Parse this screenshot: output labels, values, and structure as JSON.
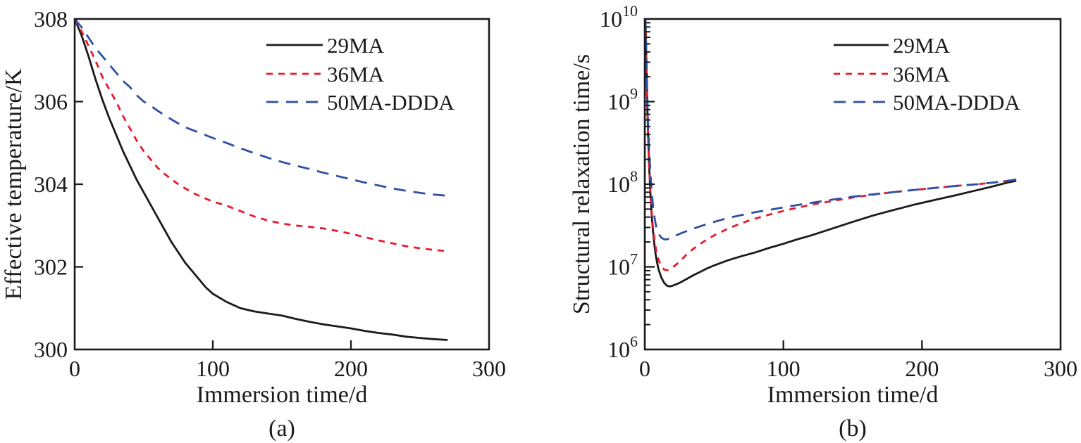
{
  "figure_name": "immersion-time-dual-panel-figure",
  "axis_color": "#1a1a1a",
  "chart_data": [
    {
      "type": "line",
      "caption": "(a)",
      "xlabel": "Immersion time/d",
      "ylabel": "Effective temperature/K",
      "yscale": "linear",
      "xlim": [
        0,
        300
      ],
      "ylim": [
        300,
        308
      ],
      "x_ticks": [
        0,
        100,
        200,
        300
      ],
      "y_ticks": [
        300,
        302,
        304,
        306,
        308
      ],
      "grid": false,
      "legend_position": "inside-upper-right",
      "series": [
        {
          "name": "29MA",
          "color": "#1a1a1a",
          "dash": "solid",
          "points": [
            [
              0,
              308
            ],
            [
              5,
              307.6
            ],
            [
              10,
              307.1
            ],
            [
              15,
              306.55
            ],
            [
              20,
              306.05
            ],
            [
              25,
              305.6
            ],
            [
              30,
              305.2
            ],
            [
              35,
              304.8
            ],
            [
              40,
              304.45
            ],
            [
              45,
              304.1
            ],
            [
              50,
              303.8
            ],
            [
              55,
              303.5
            ],
            [
              60,
              303.2
            ],
            [
              65,
              302.9
            ],
            [
              70,
              302.6
            ],
            [
              75,
              302.35
            ],
            [
              80,
              302.1
            ],
            [
              85,
              301.9
            ],
            [
              90,
              301.7
            ],
            [
              95,
              301.5
            ],
            [
              100,
              301.35
            ],
            [
              110,
              301.15
            ],
            [
              120,
              301.0
            ],
            [
              130,
              300.92
            ],
            [
              140,
              300.87
            ],
            [
              150,
              300.82
            ],
            [
              160,
              300.74
            ],
            [
              170,
              300.67
            ],
            [
              180,
              300.61
            ],
            [
              190,
              300.56
            ],
            [
              200,
              300.51
            ],
            [
              210,
              300.45
            ],
            [
              220,
              300.4
            ],
            [
              230,
              300.36
            ],
            [
              240,
              300.31
            ],
            [
              250,
              300.28
            ],
            [
              260,
              300.25
            ],
            [
              270,
              300.23
            ]
          ]
        },
        {
          "name": "36MA",
          "color": "#e8192d",
          "dash": "short-dash",
          "points": [
            [
              0,
              308
            ],
            [
              5,
              307.7
            ],
            [
              10,
              307.35
            ],
            [
              15,
              307.0
            ],
            [
              20,
              306.6
            ],
            [
              25,
              306.3
            ],
            [
              30,
              306.0
            ],
            [
              35,
              305.65
            ],
            [
              40,
              305.35
            ],
            [
              45,
              305.05
            ],
            [
              50,
              304.8
            ],
            [
              55,
              304.6
            ],
            [
              60,
              304.4
            ],
            [
              65,
              304.25
            ],
            [
              70,
              304.12
            ],
            [
              75,
              304.0
            ],
            [
              80,
              303.9
            ],
            [
              85,
              303.8
            ],
            [
              90,
              303.72
            ],
            [
              95,
              303.65
            ],
            [
              100,
              303.58
            ],
            [
              110,
              303.48
            ],
            [
              120,
              303.35
            ],
            [
              130,
              303.22
            ],
            [
              140,
              303.12
            ],
            [
              150,
              303.05
            ],
            [
              160,
              303.0
            ],
            [
              170,
              302.97
            ],
            [
              180,
              302.93
            ],
            [
              190,
              302.87
            ],
            [
              200,
              302.8
            ],
            [
              210,
              302.72
            ],
            [
              220,
              302.64
            ],
            [
              230,
              302.57
            ],
            [
              240,
              302.5
            ],
            [
              250,
              302.45
            ],
            [
              260,
              302.41
            ],
            [
              270,
              302.38
            ]
          ]
        },
        {
          "name": "50MA-DDDA",
          "color": "#2e4fa5",
          "dash": "long-dash",
          "points": [
            [
              0,
              308
            ],
            [
              5,
              307.8
            ],
            [
              10,
              307.55
            ],
            [
              15,
              307.3
            ],
            [
              20,
              307.1
            ],
            [
              25,
              306.9
            ],
            [
              30,
              306.7
            ],
            [
              35,
              306.5
            ],
            [
              40,
              306.35
            ],
            [
              45,
              306.15
            ],
            [
              50,
              306.0
            ],
            [
              55,
              305.9
            ],
            [
              60,
              305.78
            ],
            [
              65,
              305.67
            ],
            [
              70,
              305.57
            ],
            [
              75,
              305.47
            ],
            [
              80,
              305.38
            ],
            [
              90,
              305.25
            ],
            [
              100,
              305.12
            ],
            [
              110,
              305.0
            ],
            [
              120,
              304.87
            ],
            [
              130,
              304.75
            ],
            [
              140,
              304.64
            ],
            [
              150,
              304.54
            ],
            [
              160,
              304.45
            ],
            [
              170,
              304.37
            ],
            [
              180,
              304.28
            ],
            [
              190,
              304.2
            ],
            [
              200,
              304.12
            ],
            [
              210,
              304.04
            ],
            [
              220,
              303.97
            ],
            [
              230,
              303.9
            ],
            [
              240,
              303.84
            ],
            [
              250,
              303.79
            ],
            [
              260,
              303.75
            ],
            [
              270,
              303.72
            ]
          ]
        }
      ]
    },
    {
      "type": "line",
      "caption": "(b)",
      "xlabel": "Immersion time/d",
      "ylabel": "Structural relaxation time/s",
      "yscale": "log",
      "xlim": [
        0,
        300
      ],
      "ylim": [
        1000000.0,
        10000000000.0
      ],
      "x_ticks": [
        0,
        100,
        200,
        300
      ],
      "y_ticks": [
        {
          "base": "10",
          "exp": "6",
          "value": 1000000.0
        },
        {
          "base": "10",
          "exp": "7",
          "value": 10000000.0
        },
        {
          "base": "10",
          "exp": "8",
          "value": 100000000.0
        },
        {
          "base": "10",
          "exp": "9",
          "value": 1000000000.0
        },
        {
          "base": "10",
          "exp": "10",
          "value": 10000000000.0
        }
      ],
      "grid": false,
      "legend_position": "inside-upper-right",
      "series": [
        {
          "name": "29MA",
          "color": "#1a1a1a",
          "dash": "solid",
          "points": [
            [
              0.5,
              9500000000.0
            ],
            [
              1,
              4000000000.0
            ],
            [
              1.5,
              1600000000.0
            ],
            [
              2,
              700000000.0
            ],
            [
              2.5,
              350000000.0
            ],
            [
              3,
              190000000.0
            ],
            [
              4,
              80000000.0
            ],
            [
              5,
              42000000.0
            ],
            [
              6,
              26000000.0
            ],
            [
              7,
              18000000.0
            ],
            [
              8,
              13500000.0
            ],
            [
              9,
              11000000.0
            ],
            [
              10,
              9200000.0
            ],
            [
              12,
              7400000.0
            ],
            [
              14,
              6400000.0
            ],
            [
              16,
              5900000.0
            ],
            [
              18,
              5800000.0
            ],
            [
              20,
              5900000.0
            ],
            [
              25,
              6400000.0
            ],
            [
              30,
              7100000.0
            ],
            [
              35,
              7900000.0
            ],
            [
              40,
              8700000.0
            ],
            [
              45,
              9600000.0
            ],
            [
              50,
              10400000.0
            ],
            [
              60,
              12000000.0
            ],
            [
              70,
              13500000.0
            ],
            [
              80,
              15000000.0
            ],
            [
              90,
              17000000.0
            ],
            [
              100,
              19000000.0
            ],
            [
              110,
              21500000.0
            ],
            [
              120,
              24000000.0
            ],
            [
              135,
              29000000.0
            ],
            [
              150,
              35000000.0
            ],
            [
              165,
              42000000.0
            ],
            [
              180,
              49000000.0
            ],
            [
              195,
              57000000.0
            ],
            [
              210,
              65000000.0
            ],
            [
              225,
              74000000.0
            ],
            [
              240,
              85000000.0
            ],
            [
              252,
              95000000.0
            ],
            [
              262,
              105000000.0
            ],
            [
              268,
              110000000.0
            ]
          ]
        },
        {
          "name": "36MA",
          "color": "#e8192d",
          "dash": "short-dash",
          "points": [
            [
              0.4,
              10000000000.0
            ],
            [
              0.8,
              5500000000.0
            ],
            [
              1.2,
              2600000000.0
            ],
            [
              1.6,
              1300000000.0
            ],
            [
              2,
              700000000.0
            ],
            [
              2.5,
              360000000.0
            ],
            [
              3,
              200000000.0
            ],
            [
              4,
              85000000.0
            ],
            [
              5,
              46000000.0
            ],
            [
              6,
              29000000.0
            ],
            [
              7,
              21000000.0
            ],
            [
              8,
              16500000.0
            ],
            [
              9,
              13500000.0
            ],
            [
              10,
              12000000.0
            ],
            [
              12,
              10000000.0
            ],
            [
              14,
              9300000.0
            ],
            [
              16,
              9100000.0
            ],
            [
              18,
              9300000.0
            ],
            [
              20,
              9800000.0
            ],
            [
              25,
              11500000.0
            ],
            [
              30,
              14000000.0
            ],
            [
              35,
              16500000.0
            ],
            [
              40,
              19000000.0
            ],
            [
              45,
              21500000.0
            ],
            [
              50,
              24000000.0
            ],
            [
              60,
              29000000.0
            ],
            [
              70,
              34000000.0
            ],
            [
              80,
              38500000.0
            ],
            [
              90,
              43000000.0
            ],
            [
              100,
              47500000.0
            ],
            [
              110,
              52000000.0
            ],
            [
              120,
              56500000.0
            ],
            [
              135,
              62500000.0
            ],
            [
              150,
              69000000.0
            ],
            [
              165,
              75000000.0
            ],
            [
              180,
              80500000.0
            ],
            [
              195,
              85500000.0
            ],
            [
              210,
              90500000.0
            ],
            [
              225,
              95500000.0
            ],
            [
              240,
              100000000.0
            ],
            [
              252,
              105000000.0
            ],
            [
              262,
              110000000.0
            ],
            [
              268,
              114000000.0
            ]
          ]
        },
        {
          "name": "50MA-DDDA",
          "color": "#2e4fa5",
          "dash": "long-dash",
          "points": [
            [
              0.4,
              10000000000.0
            ],
            [
              0.8,
              6000000000.0
            ],
            [
              1.2,
              3000000000.0
            ],
            [
              1.6,
              1600000000.0
            ],
            [
              2,
              900000000.0
            ],
            [
              2.5,
              500000000.0
            ],
            [
              3,
              300000000.0
            ],
            [
              4,
              140000000.0
            ],
            [
              5,
              80000000.0
            ],
            [
              6,
              54000000.0
            ],
            [
              7,
              40000000.0
            ],
            [
              8,
              32000000.0
            ],
            [
              9,
              27500000.0
            ],
            [
              10,
              25000000.0
            ],
            [
              12,
              22500000.0
            ],
            [
              14,
              21500000.0
            ],
            [
              16,
              21500000.0
            ],
            [
              18,
              22000000.0
            ],
            [
              20,
              23000000.0
            ],
            [
              25,
              25000000.0
            ],
            [
              30,
              27000000.0
            ],
            [
              35,
              29000000.0
            ],
            [
              40,
              31000000.0
            ],
            [
              45,
              33000000.0
            ],
            [
              50,
              35000000.0
            ],
            [
              60,
              39000000.0
            ],
            [
              70,
              42500000.0
            ],
            [
              80,
              46000000.0
            ],
            [
              90,
              49000000.0
            ],
            [
              100,
              52500000.0
            ],
            [
              110,
              56000000.0
            ],
            [
              120,
              59500000.0
            ],
            [
              135,
              65000000.0
            ],
            [
              150,
              70500000.0
            ],
            [
              165,
              75500000.0
            ],
            [
              180,
              80500000.0
            ],
            [
              195,
              85500000.0
            ],
            [
              210,
              90500000.0
            ],
            [
              225,
              95500000.0
            ],
            [
              240,
              100000000.0
            ],
            [
              252,
              105000000.0
            ],
            [
              262,
              110000000.0
            ],
            [
              268,
              114000000.0
            ]
          ]
        }
      ]
    }
  ]
}
